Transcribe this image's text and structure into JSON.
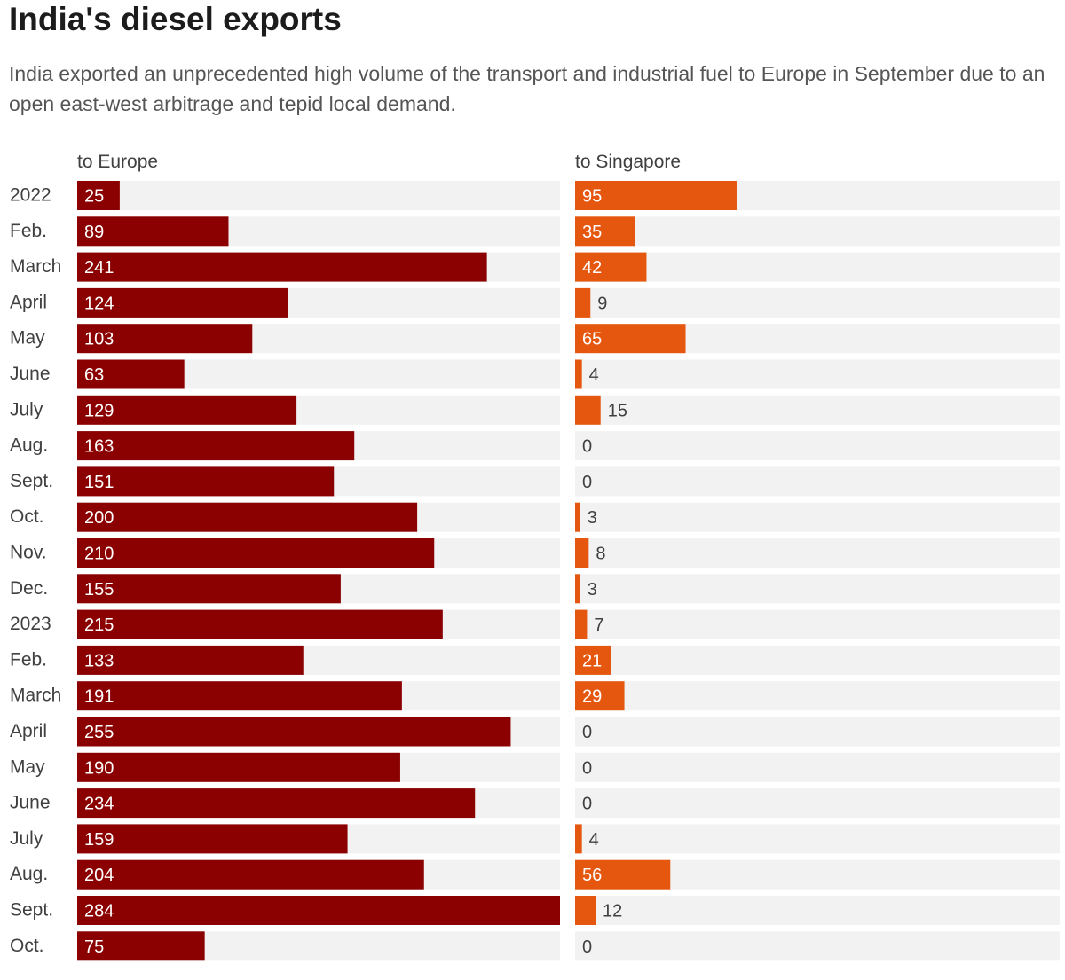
{
  "title": "India's diesel exports",
  "subtitle": "India exported an unprecedented high volume of the transport and industrial fuel to Europe in September due to an open east-west arbitrage and tepid local demand.",
  "chart_data": {
    "type": "bar",
    "orientation": "horizontal",
    "title": "India's diesel exports",
    "categories": [
      "2022",
      "Feb.",
      "March",
      "April",
      "May",
      "June",
      "July",
      "Aug.",
      "Sept.",
      "Oct.",
      "Nov.",
      "Dec.",
      "2023",
      "Feb.",
      "March",
      "April",
      "May",
      "June",
      "July",
      "Aug.",
      "Sept.",
      "Oct."
    ],
    "series": [
      {
        "name": "to Europe",
        "color": "#8b0000",
        "max": 284,
        "values": [
          25,
          89,
          241,
          124,
          103,
          63,
          129,
          163,
          151,
          200,
          210,
          155,
          215,
          133,
          191,
          255,
          190,
          234,
          159,
          204,
          284,
          75
        ]
      },
      {
        "name": "to Singapore",
        "color": "#e5560f",
        "max": 284,
        "values": [
          95,
          35,
          42,
          9,
          65,
          4,
          15,
          0,
          0,
          3,
          8,
          3,
          7,
          21,
          29,
          0,
          0,
          0,
          4,
          56,
          12,
          0
        ]
      }
    ],
    "colors": {
      "track": "#f2f2f2",
      "label_inside": "#ffffff",
      "label_outside": "#404040"
    }
  }
}
